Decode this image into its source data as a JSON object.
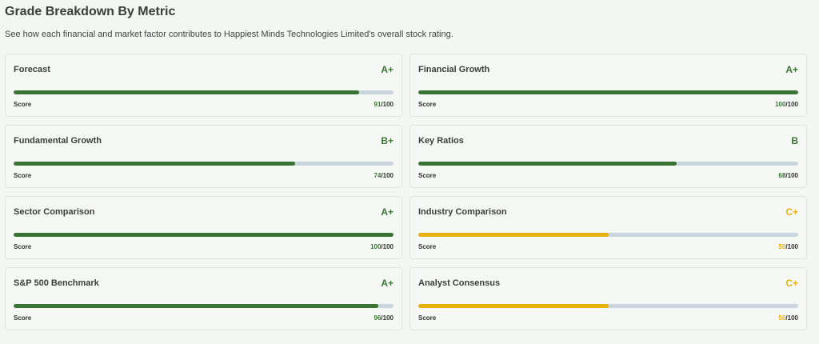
{
  "title": "Grade Breakdown By Metric",
  "subtitle": "See how each financial and market factor contributes to Happiest Minds Technologies Limited's overall stock rating.",
  "colors": {
    "green": "#3a7434",
    "amber": "#e8b00f",
    "track": "#cbd5e0"
  },
  "metrics": [
    {
      "name": "Forecast",
      "grade": "A+",
      "score_label": "Score",
      "score": 91,
      "max": "/100",
      "color": "green"
    },
    {
      "name": "Financial Growth",
      "grade": "A+",
      "score_label": "Score",
      "score": 100,
      "max": "/100",
      "color": "green"
    },
    {
      "name": "Fundamental Growth",
      "grade": "B+",
      "score_label": "Score",
      "score": 74,
      "max": "/100",
      "color": "green"
    },
    {
      "name": "Key Ratios",
      "grade": "B",
      "score_label": "Score",
      "score": 68,
      "max": "/100",
      "color": "green"
    },
    {
      "name": "Sector Comparison",
      "grade": "A+",
      "score_label": "Score",
      "score": 100,
      "max": "/100",
      "color": "green"
    },
    {
      "name": "Industry Comparison",
      "grade": "C+",
      "score_label": "Score",
      "score": 50,
      "max": "/100",
      "color": "amber"
    },
    {
      "name": "S&P 500 Benchmark",
      "grade": "A+",
      "score_label": "Score",
      "score": 96,
      "max": "/100",
      "color": "green"
    },
    {
      "name": "Analyst Consensus",
      "grade": "C+",
      "score_label": "Score",
      "score": 50,
      "max": "/100",
      "color": "amber"
    }
  ]
}
